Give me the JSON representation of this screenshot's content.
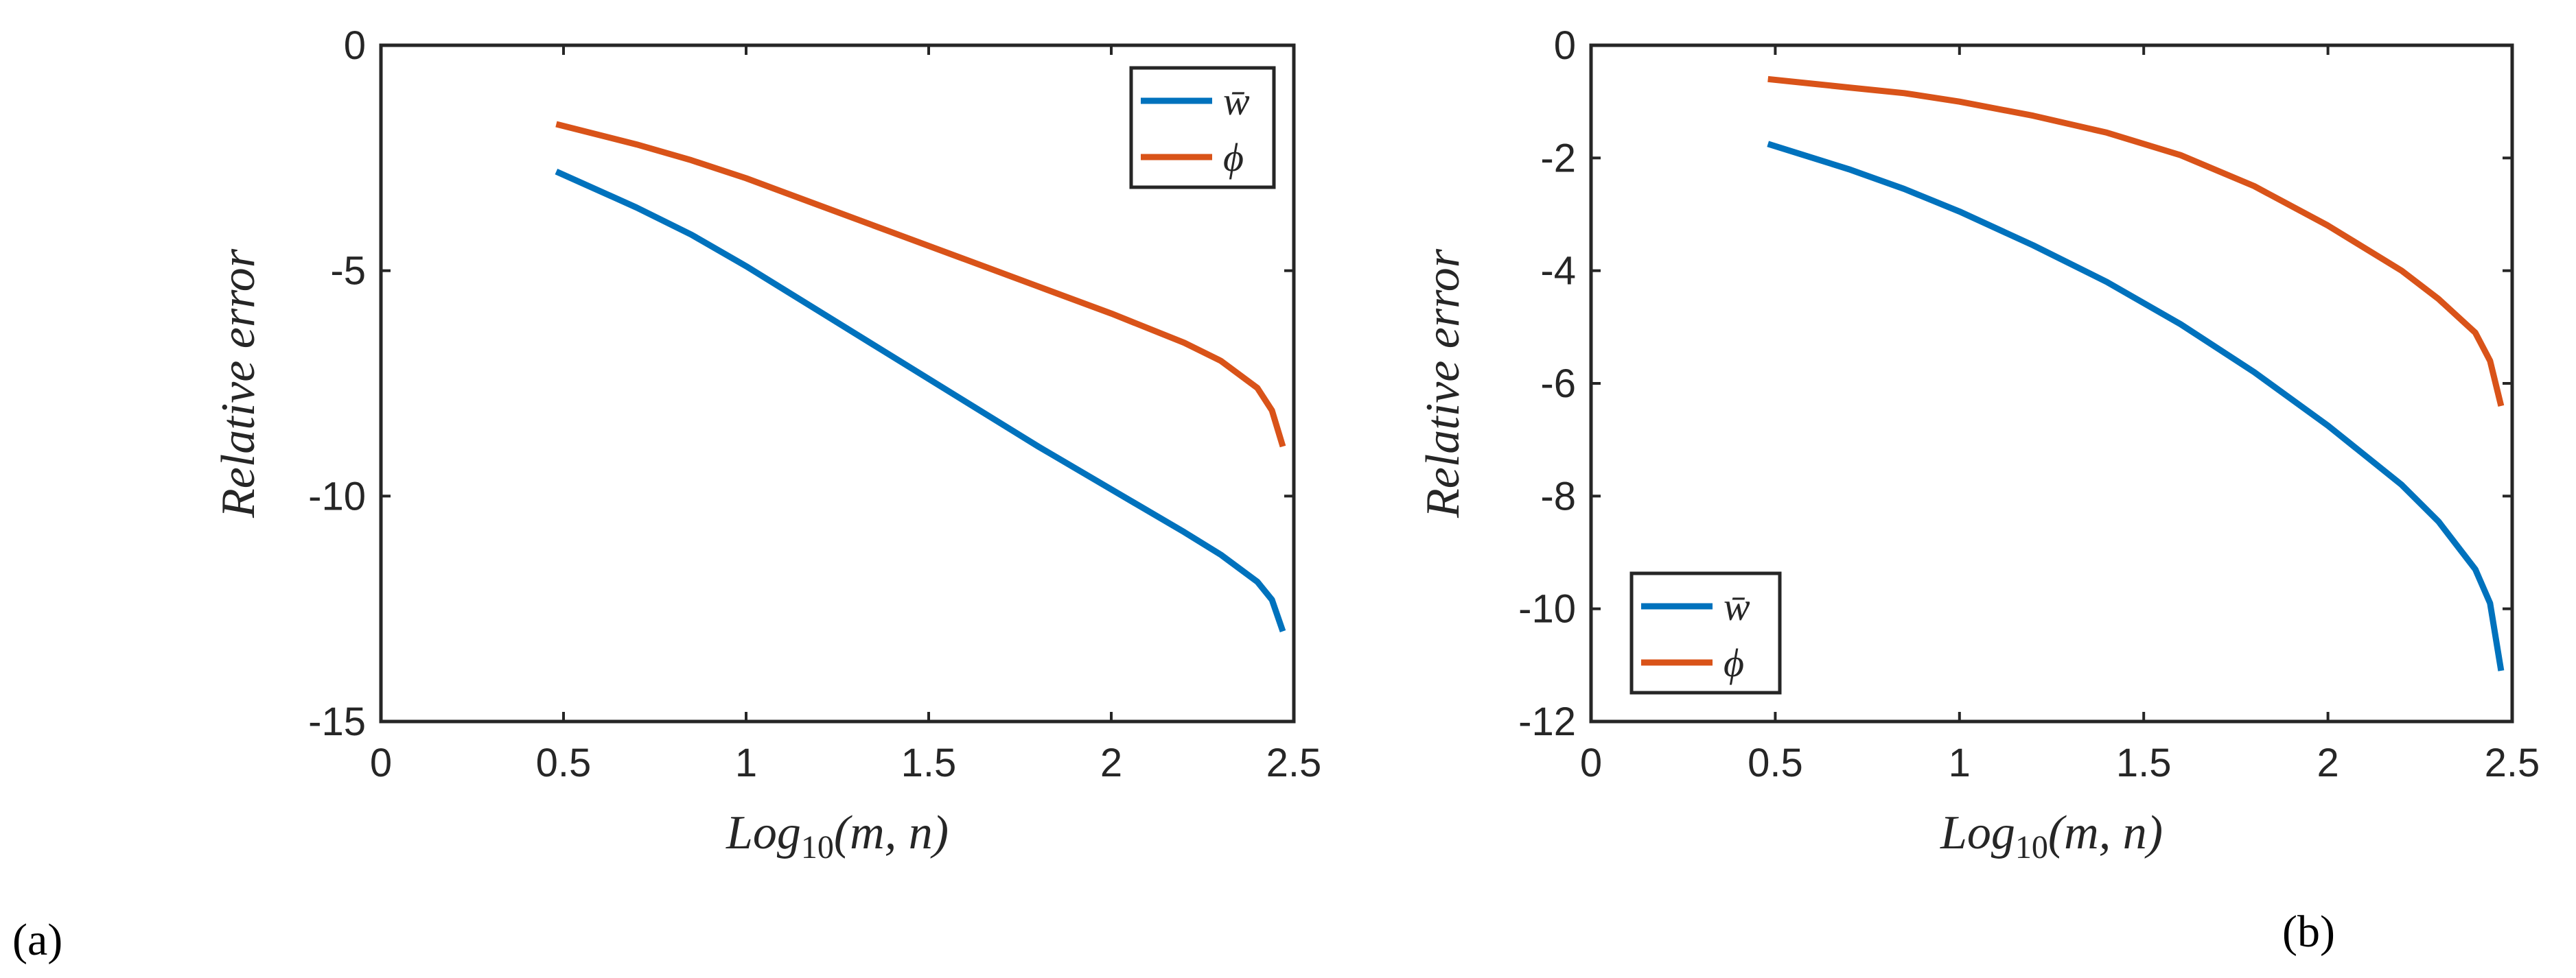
{
  "chart_data": [
    {
      "type": "line",
      "panel_label": "(a)",
      "title": "",
      "xlabel_base": "Log",
      "xlabel_sub": "10",
      "xlabel_args": "(m, n)",
      "ylabel": "Relative error",
      "xlim": [
        0,
        2.5
      ],
      "ylim": [
        -15,
        0
      ],
      "xticks": [
        "0",
        "0.5",
        "1",
        "1.5",
        "2",
        "2.5"
      ],
      "xtick_values": [
        0,
        0.5,
        1,
        1.5,
        2,
        2.5
      ],
      "yticks": [
        "0",
        "-5",
        "-10",
        "-15"
      ],
      "ytick_values": [
        0,
        -5,
        -10,
        -15
      ],
      "grid": false,
      "legend_position": "top-right",
      "series": [
        {
          "name": "w̄",
          "color": "#0072BD",
          "x": [
            0.48,
            0.7,
            0.85,
            1.0,
            1.2,
            1.4,
            1.6,
            1.8,
            2.0,
            2.2,
            2.3,
            2.4,
            2.44,
            2.47
          ],
          "y": [
            -2.8,
            -3.6,
            -4.2,
            -4.9,
            -5.9,
            -6.9,
            -7.9,
            -8.9,
            -9.85,
            -10.8,
            -11.3,
            -11.9,
            -12.3,
            -13.0
          ]
        },
        {
          "name": "ϕ",
          "color": "#D95319",
          "x": [
            0.48,
            0.7,
            0.85,
            1.0,
            1.2,
            1.4,
            1.6,
            1.8,
            2.0,
            2.2,
            2.3,
            2.4,
            2.44,
            2.47
          ],
          "y": [
            -1.75,
            -2.2,
            -2.55,
            -2.95,
            -3.55,
            -4.15,
            -4.75,
            -5.35,
            -5.95,
            -6.6,
            -7.0,
            -7.6,
            -8.1,
            -8.9
          ]
        }
      ]
    },
    {
      "type": "line",
      "panel_label": "(b)",
      "title": "",
      "xlabel_base": "Log",
      "xlabel_sub": "10",
      "xlabel_args": "(m, n)",
      "ylabel": "Relative error",
      "xlim": [
        0,
        2.5
      ],
      "ylim": [
        -12,
        0
      ],
      "xticks": [
        "0",
        "0.5",
        "1",
        "1.5",
        "2",
        "2.5"
      ],
      "xtick_values": [
        0,
        0.5,
        1,
        1.5,
        2,
        2.5
      ],
      "yticks": [
        "0",
        "-2",
        "-4",
        "-6",
        "-8",
        "-10",
        "-12"
      ],
      "ytick_values": [
        0,
        -2,
        -4,
        -6,
        -8,
        -10,
        -12
      ],
      "grid": false,
      "legend_position": "bottom-left",
      "series": [
        {
          "name": "w̄",
          "color": "#0072BD",
          "x": [
            0.48,
            0.7,
            0.85,
            1.0,
            1.2,
            1.4,
            1.6,
            1.8,
            2.0,
            2.2,
            2.3,
            2.4,
            2.44,
            2.47
          ],
          "y": [
            -1.75,
            -2.2,
            -2.55,
            -2.95,
            -3.55,
            -4.2,
            -4.95,
            -5.8,
            -6.75,
            -7.8,
            -8.45,
            -9.3,
            -9.9,
            -11.1
          ]
        },
        {
          "name": "ϕ",
          "color": "#D95319",
          "x": [
            0.48,
            0.7,
            0.85,
            1.0,
            1.2,
            1.4,
            1.6,
            1.8,
            2.0,
            2.2,
            2.3,
            2.4,
            2.44,
            2.47
          ],
          "y": [
            -0.6,
            -0.75,
            -0.85,
            -1.0,
            -1.25,
            -1.55,
            -1.95,
            -2.5,
            -3.2,
            -4.0,
            -4.5,
            -5.1,
            -5.6,
            -6.4
          ]
        }
      ]
    }
  ]
}
